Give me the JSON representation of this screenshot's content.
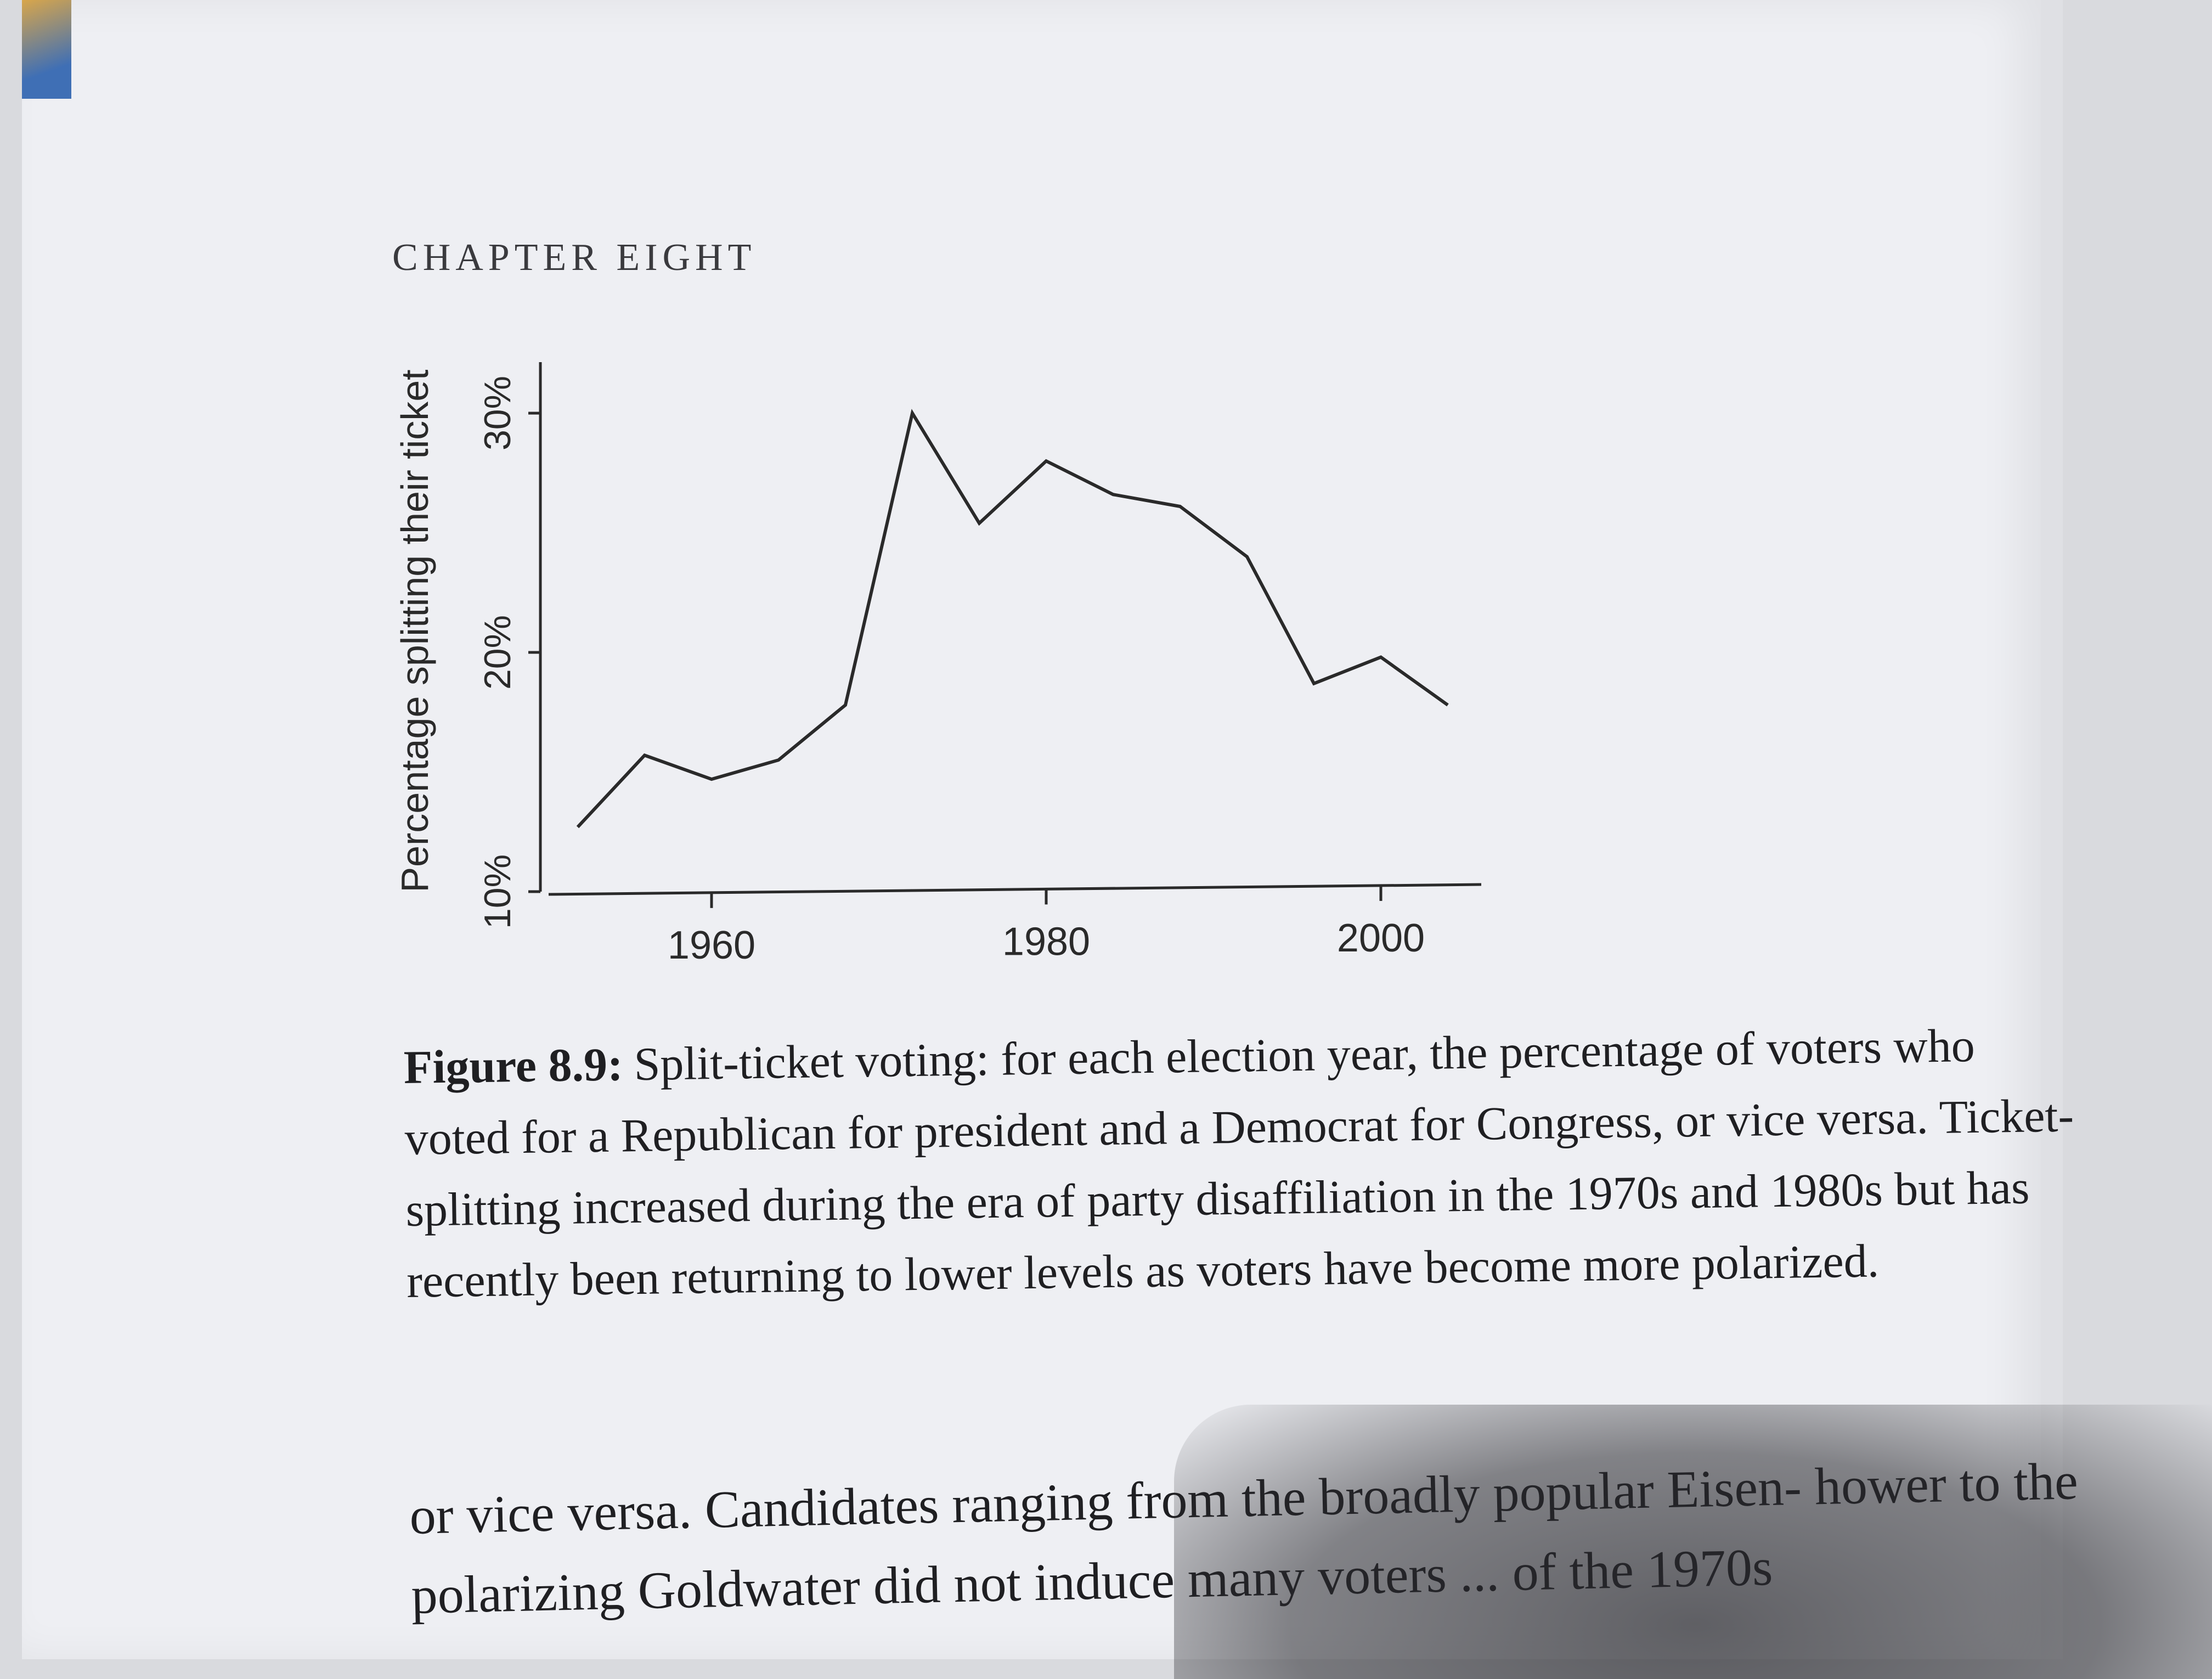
{
  "page": {
    "header": "CHAPTER EIGHT"
  },
  "figure": {
    "caption_label": "Figure 8.9:",
    "caption_text": "Split-ticket voting: for each election year, the percentage of voters who voted for a Republican for president and a Democrat for Congress, or vice versa. Ticket-splitting increased during the era of party disaffiliation in the 1970s and 1980s but has recently been returning to lower levels as voters have become more polarized."
  },
  "chart_data": {
    "type": "line",
    "title": "",
    "xlabel": "",
    "ylabel": "Percentage splitting their ticket",
    "x": [
      1952,
      1956,
      1960,
      1964,
      1968,
      1972,
      1976,
      1980,
      1984,
      1988,
      1992,
      1996,
      2000,
      2004
    ],
    "y": [
      12.7,
      15.7,
      14.7,
      15.5,
      17.8,
      30.0,
      25.4,
      28.0,
      26.6,
      26.1,
      24.0,
      18.7,
      19.8,
      17.8
    ],
    "xticks": [
      1960,
      1980,
      2000
    ],
    "xtick_labels": [
      "1960",
      "1980",
      "2000"
    ],
    "yticks": [
      10,
      20,
      30
    ],
    "ytick_labels": [
      "10%",
      "20%",
      "30%"
    ],
    "xlim": [
      1950,
      2006
    ],
    "ylim": [
      10,
      31
    ],
    "grid": false,
    "color": "#2a2a2a"
  },
  "body": {
    "text": "or vice versa. Candidates ranging from the broadly popular Eisen- hower to the polarizing Goldwater did not induce many voters ... of the 1970s"
  }
}
